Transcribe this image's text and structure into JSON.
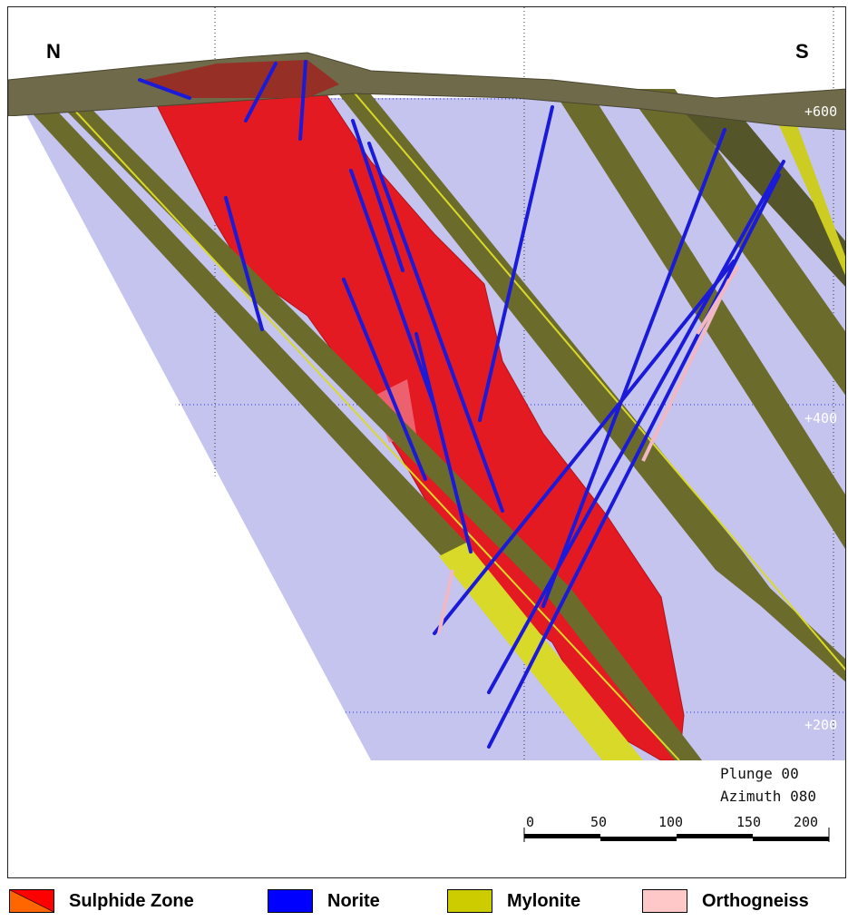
{
  "compass": {
    "left": "N",
    "right": "S"
  },
  "elevations": [
    "+600",
    "+400",
    "+200"
  ],
  "view": {
    "plunge": "Plunge 00",
    "azimuth": "Azimuth 080"
  },
  "scale_bar": {
    "ticks": [
      "0",
      "50",
      "100",
      "150",
      "200"
    ]
  },
  "legend": [
    {
      "label": "Sulphide Zone",
      "color": "#ff0000",
      "color2": "#ff6600"
    },
    {
      "label": "Norite",
      "color": "#0000ff"
    },
    {
      "label": "Mylonite",
      "color": "#cccc00"
    },
    {
      "label": "Orthogneiss",
      "color": "#ffc8c8"
    }
  ],
  "colors": {
    "section_plane": "#c4c4ef",
    "sulphide": "#e41a22",
    "norite": "#1a1ad8",
    "mylonite_dark": "#6b6b2c",
    "mylonite_yellow": "#d9d92a",
    "orthogneiss": "#f0b8c4",
    "surface": "#6e6a4a"
  }
}
